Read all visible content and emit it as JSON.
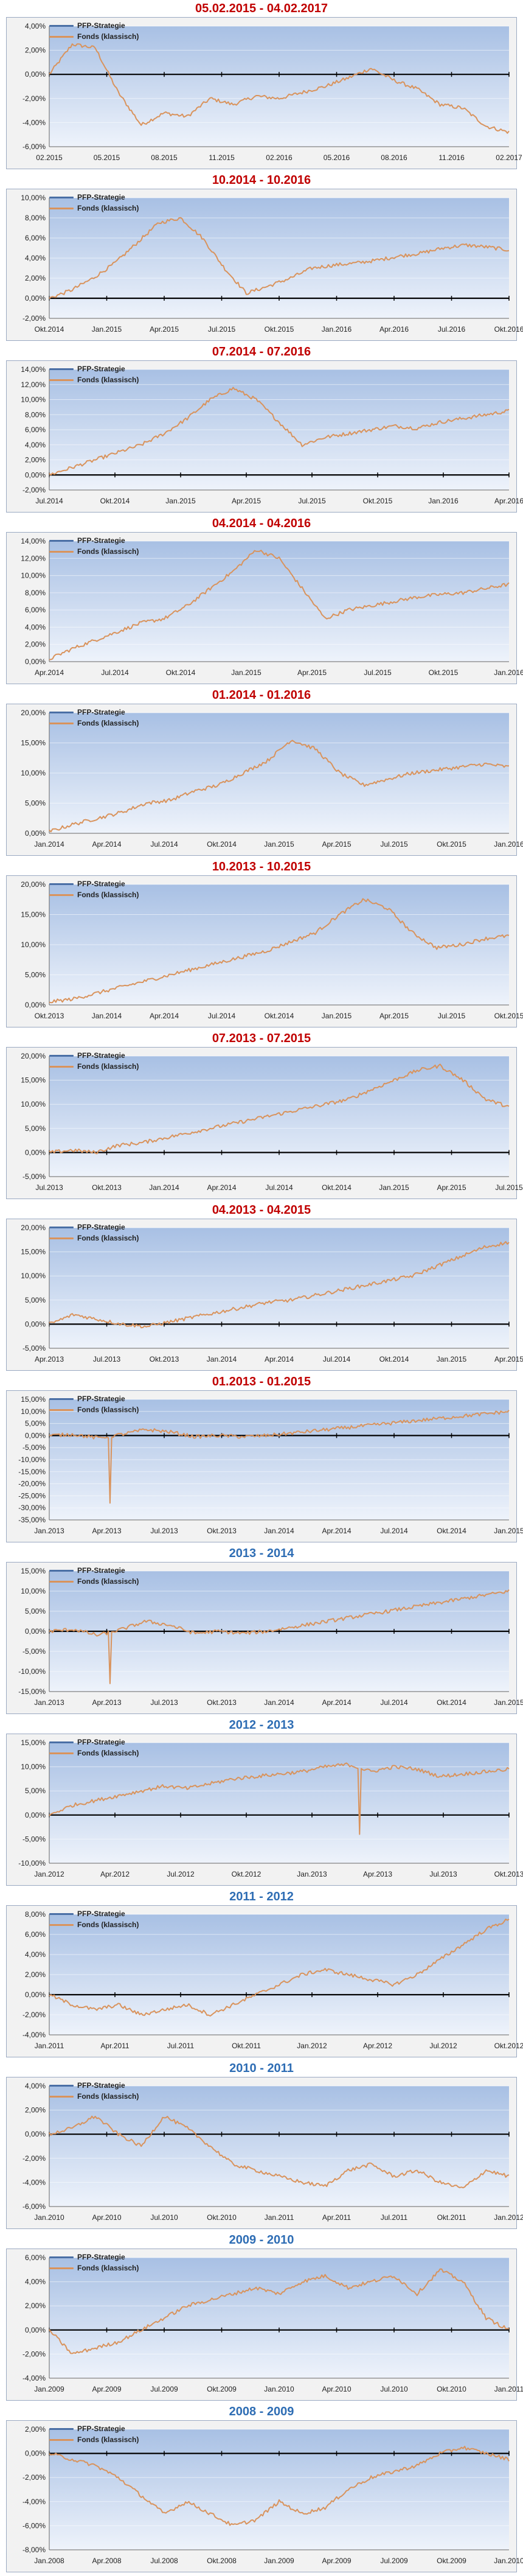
{
  "colors": {
    "strategy": "#4a6fa5",
    "fund": "#d9935c",
    "title_red": "#c00000",
    "title_blue": "#2e6db4",
    "plot_top": "#a8c0e4",
    "plot_bottom": "#eef3fb"
  },
  "chart_data": [
    {
      "type": "line",
      "title": "05.02.2015 - 04.02.2017",
      "title_color": "red",
      "legend": [
        "PFP-Strategie",
        "Fonds (klassisch)"
      ],
      "x_ticks": [
        "02.2015",
        "05.2015",
        "08.2015",
        "11.2015",
        "02.2016",
        "05.2016",
        "08.2016",
        "11.2016",
        "02.2017"
      ],
      "y_ticks": [
        "4,00%",
        "2,00%",
        "0,00%",
        "-2,00%",
        "-4,00%",
        "-6,00%"
      ],
      "ylim": [
        -6,
        4
      ],
      "series_points": [
        0,
        2.5,
        2.2,
        -1.5,
        -4.2,
        -3.2,
        -3.5,
        -2,
        -2.5,
        -1.8,
        -2,
        -1.5,
        -1,
        -0.3,
        0.5,
        -0.5,
        -1.2,
        -2.5,
        -2.8,
        -4.3,
        -4.8
      ]
    },
    {
      "type": "line",
      "title": "10.2014 - 10.2016",
      "title_color": "red",
      "legend": [
        "PFP-Strategie",
        "Fonds (klassisch)"
      ],
      "x_ticks": [
        "Okt.2014",
        "Jan.2015",
        "Apr.2015",
        "Jul.2015",
        "Okt.2015",
        "Jan.2016",
        "Apr.2016",
        "Jul.2016",
        "Okt.2016"
      ],
      "y_ticks": [
        "10,00%",
        "8,00%",
        "6,00%",
        "4,00%",
        "2,00%",
        "0,00%",
        "-2,00%"
      ],
      "ylim": [
        -2,
        10
      ],
      "series_points": [
        0,
        0.8,
        2,
        3.5,
        5.5,
        7.5,
        8,
        6,
        3,
        0.5,
        1.2,
        2,
        3,
        3.3,
        3.5,
        3.8,
        4.2,
        4.5,
        5,
        5.3,
        5.1,
        4.8
      ]
    },
    {
      "type": "line",
      "title": "07.2014 - 07.2016",
      "title_color": "red",
      "legend": [
        "PFP-Strategie",
        "Fonds (klassisch)"
      ],
      "x_ticks": [
        "Jul.2014",
        "Okt.2014",
        "Jan.2015",
        "Apr.2015",
        "Jul.2015",
        "Okt.2015",
        "Jan.2016",
        "Apr.2016"
      ],
      "y_ticks": [
        "14,00%",
        "12,00%",
        "10,00%",
        "8,00%",
        "6,00%",
        "4,00%",
        "2,00%",
        "0,00%",
        "-2,00%"
      ],
      "ylim": [
        -2,
        14
      ],
      "series_points": [
        0,
        1,
        2,
        3,
        4,
        5.5,
        7.5,
        10,
        11.5,
        10,
        7,
        4,
        5,
        5.5,
        6,
        6.5,
        6.2,
        7,
        7.5,
        8,
        8.5
      ]
    },
    {
      "type": "line",
      "title": "04.2014 - 04.2016",
      "title_color": "red",
      "legend": [
        "PFP-Strategie",
        "Fonds (klassisch)"
      ],
      "x_ticks": [
        "Apr.2014",
        "Jul.2014",
        "Okt.2014",
        "Jan.2015",
        "Apr.2015",
        "Jul.2015",
        "Okt.2015",
        "Jan.2016"
      ],
      "y_ticks": [
        "14,00%",
        "12,00%",
        "10,00%",
        "8,00%",
        "6,00%",
        "4,00%",
        "2,00%",
        "0,00%"
      ],
      "ylim": [
        0,
        14
      ],
      "series_points": [
        0.3,
        1.5,
        2.5,
        3.5,
        4.5,
        5,
        6.5,
        8.5,
        10.5,
        13,
        12,
        8.5,
        5,
        6,
        6.5,
        7,
        7.5,
        7.8,
        8,
        8.5,
        9
      ]
    },
    {
      "type": "line",
      "title": "01.2014 - 01.2016",
      "title_color": "red",
      "legend": [
        "PFP-Strategie",
        "Fonds (klassisch)"
      ],
      "x_ticks": [
        "Jan.2014",
        "Apr.2014",
        "Jul.2014",
        "Okt.2014",
        "Jan.2015",
        "Apr.2015",
        "Jul.2015",
        "Okt.2015",
        "Jan.2016"
      ],
      "y_ticks": [
        "20,00%",
        "15,00%",
        "10,00%",
        "5,00%",
        "0,00%"
      ],
      "ylim": [
        0,
        20
      ],
      "series_points": [
        0.3,
        1.5,
        2.5,
        3.5,
        5,
        5.5,
        7,
        8,
        10,
        12,
        15.5,
        14,
        10,
        8,
        9,
        10,
        10.5,
        11,
        11.5,
        11
      ]
    },
    {
      "type": "line",
      "title": "10.2013 - 10.2015",
      "title_color": "red",
      "legend": [
        "PFP-Strategie",
        "Fonds (klassisch)"
      ],
      "x_ticks": [
        "Okt.2013",
        "Jan.2014",
        "Apr.2014",
        "Jul.2014",
        "Okt.2014",
        "Jan.2015",
        "Apr.2015",
        "Jul.2015",
        "Okt.2015"
      ],
      "y_ticks": [
        "20,00%",
        "15,00%",
        "10,00%",
        "5,00%",
        "0,00%"
      ],
      "ylim": [
        0,
        20
      ],
      "series_points": [
        0.5,
        1,
        2,
        3,
        4,
        5,
        6,
        7,
        8,
        9,
        10.5,
        12,
        15,
        17.5,
        16,
        12,
        9.5,
        10,
        11,
        11.5
      ]
    },
    {
      "type": "line",
      "title": "07.2013 - 07.2015",
      "title_color": "red",
      "legend": [
        "PFP-Strategie",
        "Fonds (klassisch)"
      ],
      "x_ticks": [
        "Jul.2013",
        "Okt.2013",
        "Jan.2014",
        "Apr.2014",
        "Jul.2014",
        "Okt.2014",
        "Jan.2015",
        "Apr.2015",
        "Jul.2015"
      ],
      "y_ticks": [
        "20,00%",
        "15,00%",
        "10,00%",
        "5,00%",
        "0,00%",
        "-5,00%"
      ],
      "ylim": [
        -5,
        20
      ],
      "series_points": [
        0,
        0.5,
        0,
        1.5,
        2,
        3,
        4,
        5,
        6,
        7,
        8,
        9,
        10,
        11,
        13,
        15,
        17,
        18,
        15,
        11,
        9.5
      ]
    },
    {
      "type": "line",
      "title": "04.2013 - 04.2015",
      "title_color": "red",
      "legend": [
        "PFP-Strategie",
        "Fonds (klassisch)"
      ],
      "x_ticks": [
        "Apr.2013",
        "Jul.2013",
        "Okt.2013",
        "Jan.2014",
        "Apr.2014",
        "Jul.2014",
        "Okt.2014",
        "Jan.2015",
        "Apr.2015"
      ],
      "y_ticks": [
        "20,00%",
        "15,00%",
        "10,00%",
        "5,00%",
        "0,00%",
        "-5,00%"
      ],
      "ylim": [
        -5,
        20
      ],
      "series_points": [
        0,
        2,
        1,
        0,
        -0.5,
        0.5,
        1.5,
        2.5,
        3.5,
        4.5,
        5,
        6,
        7,
        8,
        9,
        10,
        12,
        14,
        16,
        17
      ]
    },
    {
      "type": "line",
      "title": "01.2013 - 01.2015",
      "title_color": "red",
      "legend": [
        "PFP-Strategie",
        "Fonds (klassisch)"
      ],
      "x_ticks": [
        "Jan.2013",
        "Apr.2013",
        "Jul.2013",
        "Okt.2013",
        "Jan.2014",
        "Apr.2014",
        "Jul.2014",
        "Okt.2014",
        "Jan.2015"
      ],
      "y_ticks": [
        "15,00%",
        "10,00%",
        "5,00%",
        "0,00%",
        "-5,00%",
        "-10,00%",
        "-15,00%",
        "-20,00%",
        "-25,00%",
        "-30,00%",
        "-35,00%"
      ],
      "ylim": [
        -35,
        15
      ],
      "series_points": [
        0,
        0.5,
        -1,
        0.5,
        2.5,
        1.5,
        -0.5,
        0,
        -0.5,
        0,
        1,
        2,
        3,
        4,
        5,
        6,
        7,
        8,
        9,
        10
      ],
      "spike": {
        "index": 2.5,
        "value": -28
      }
    },
    {
      "type": "line",
      "title": "2013 - 2014",
      "title_color": "blue",
      "legend": [
        "PFP-Strategie",
        "Fonds (klassisch)"
      ],
      "x_ticks": [
        "Jan.2013",
        "Apr.2013",
        "Jul.2013",
        "Okt.2013",
        "Jan.2014",
        "Apr.2014",
        "Jul.2014",
        "Okt.2014",
        "Jan.2015"
      ],
      "y_ticks": [
        "15,00%",
        "10,00%",
        "5,00%",
        "0,00%",
        "-5,00%",
        "-10,00%",
        "-15,00%"
      ],
      "ylim": [
        -15,
        15
      ],
      "series_points": [
        0,
        0.5,
        -1,
        0.5,
        2.5,
        1.5,
        -0.5,
        0,
        -0.5,
        0,
        1,
        2,
        3,
        4,
        5,
        6,
        7,
        8,
        9,
        10
      ],
      "spike": {
        "index": 2.5,
        "value": -13
      }
    },
    {
      "type": "line",
      "title": "2012 - 2013",
      "title_color": "blue",
      "legend": [
        "PFP-Strategie",
        "Fonds (klassisch)"
      ],
      "x_ticks": [
        "Jan.2012",
        "Apr.2012",
        "Jul.2012",
        "Okt.2012",
        "Jan.2013",
        "Apr.2013",
        "Jul.2013",
        "Okt.2013"
      ],
      "y_ticks": [
        "15,00%",
        "10,00%",
        "5,00%",
        "0,00%",
        "-5,00%",
        "-10,00%"
      ],
      "ylim": [
        -10,
        15
      ],
      "series_points": [
        0,
        2,
        3,
        4,
        5,
        6,
        5.5,
        6.5,
        7.5,
        8,
        8.5,
        9,
        10,
        10.5,
        9,
        10,
        9.5,
        8,
        8.5,
        9,
        9.5
      ],
      "spike": {
        "index": 13.5,
        "value": -4
      }
    },
    {
      "type": "line",
      "title": "2011 - 2012",
      "title_color": "blue",
      "legend": [
        "PFP-Strategie",
        "Fonds (klassisch)"
      ],
      "x_ticks": [
        "Jan.2011",
        "Apr.2011",
        "Jul.2011",
        "Okt.2011",
        "Jan.2012",
        "Apr.2012",
        "Jul.2012",
        "Okt.2012"
      ],
      "y_ticks": [
        "8,00%",
        "6,00%",
        "4,00%",
        "2,00%",
        "0,00%",
        "-2,00%",
        "-4,00%"
      ],
      "ylim": [
        -4,
        8
      ],
      "series_points": [
        0,
        -1,
        -1.5,
        -1,
        -2,
        -1.5,
        -1,
        -2,
        -1,
        0,
        1,
        2,
        2.5,
        2,
        1.5,
        1,
        2,
        3.5,
        5,
        6.5,
        7.5
      ]
    },
    {
      "type": "line",
      "title": "2010 - 2011",
      "title_color": "blue",
      "legend": [
        "PFP-Strategie",
        "Fonds (klassisch)"
      ],
      "x_ticks": [
        "Jan.2010",
        "Apr.2010",
        "Jul.2010",
        "Okt.2010",
        "Jan.2011",
        "Apr.2011",
        "Jul.2011",
        "Okt.2011",
        "Jan.2012"
      ],
      "y_ticks": [
        "4,00%",
        "2,00%",
        "0,00%",
        "-2,00%",
        "-4,00%",
        "-6,00%"
      ],
      "ylim": [
        -6,
        4
      ],
      "series_points": [
        0,
        0.5,
        1.5,
        0,
        -1,
        1.5,
        0.5,
        -1,
        -2.5,
        -3,
        -3.5,
        -4,
        -4.3,
        -3,
        -2.5,
        -3.5,
        -3,
        -4,
        -4.5,
        -3,
        -3.5
      ]
    },
    {
      "type": "line",
      "title": "2009 - 2010",
      "title_color": "blue",
      "legend": [
        "PFP-Strategie",
        "Fonds (klassisch)"
      ],
      "x_ticks": [
        "Jan.2009",
        "Apr.2009",
        "Jul.2009",
        "Okt.2009",
        "Jan.2010",
        "Apr.2010",
        "Jul.2010",
        "Okt.2010",
        "Jan.2011"
      ],
      "y_ticks": [
        "6,00%",
        "4,00%",
        "2,00%",
        "0,00%",
        "-2,00%",
        "-4,00%"
      ],
      "ylim": [
        -4,
        6
      ],
      "series_points": [
        0,
        -2,
        -1.5,
        -1,
        0,
        1,
        2,
        2.5,
        3,
        3.5,
        3,
        4,
        4.5,
        3.5,
        4,
        4.5,
        3,
        5,
        4,
        1,
        0
      ]
    },
    {
      "type": "line",
      "title": "2008 - 2009",
      "title_color": "blue",
      "legend": [
        "PFP-Strategie",
        "Fonds (klassisch)"
      ],
      "x_ticks": [
        "Jan.2008",
        "Apr.2008",
        "Jul.2008",
        "Okt.2008",
        "Jan.2009",
        "Apr.2009",
        "Jul.2009",
        "Okt.2009",
        "Jan.2010"
      ],
      "y_ticks": [
        "2,00%",
        "0,00%",
        "-2,00%",
        "-4,00%",
        "-6,00%",
        "-8,00%"
      ],
      "ylim": [
        -8,
        2
      ],
      "series_points": [
        0,
        -0.5,
        -1,
        -2,
        -3.5,
        -5,
        -4,
        -5,
        -6,
        -5.5,
        -4,
        -5,
        -4.5,
        -3,
        -2,
        -1.5,
        -1,
        0,
        0.5,
        0,
        -0.5
      ]
    }
  ]
}
